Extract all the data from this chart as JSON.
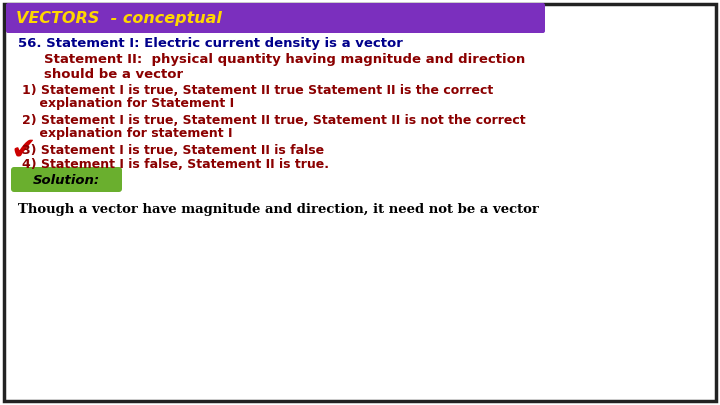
{
  "title": "VECTORS  - conceptual",
  "title_bg": "#7B2FBE",
  "title_color": "#FFD700",
  "bg_color": "#FFFFFF",
  "border_color": "#222222",
  "line1": "56. Statement I: Electric current density is a vector",
  "line1_color": "#00008B",
  "line2a": "Statement II:  physical quantity having magnitude and direction",
  "line2b": "should be a vector",
  "line2_color": "#8B0000",
  "opt1a": "1) Statement I is true, Statement II true Statement II is the correct",
  "opt1b": "    explanation for Statement I",
  "opt2a": "2) Statement I is true, Statement II true, Statement II is not the correct",
  "opt2b": "    explanation for statement I",
  "opt3": "3) Statement I is true, Statement II is false",
  "opt4": "4) Statement I is false, Statement II is true.",
  "opt_color": "#8B0000",
  "solution_label": "Solution:",
  "solution_bg": "#6AAF2E",
  "solution_color": "#000000",
  "answer_line": "Though a vector have magnitude and direction, it need not be a vector",
  "answer_color": "#000000",
  "checkmark_color": "#CC0000"
}
